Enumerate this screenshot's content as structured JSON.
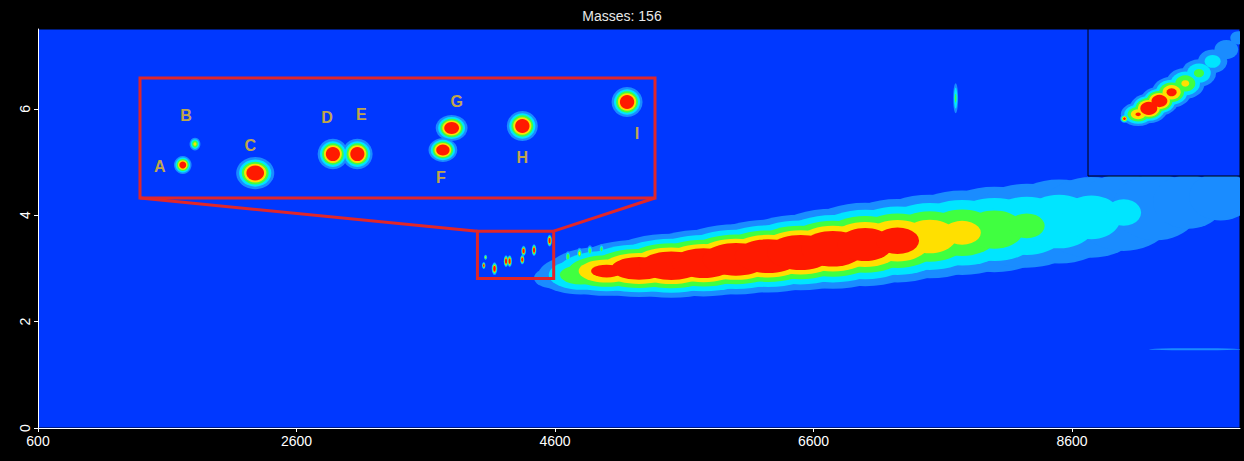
{
  "chart_data": [
    {
      "type": "contour",
      "title": "Masses: 156",
      "xlim": [
        600,
        9900
      ],
      "xticks": [
        600,
        2600,
        4600,
        6600,
        8600
      ],
      "ylim": [
        0,
        7.5
      ],
      "yticks": [
        0,
        2,
        4,
        6
      ],
      "peaks": [
        {
          "x": 4600,
          "y": 2.82,
          "sx": 120,
          "sy": 0.15,
          "intensity": 0.15
        },
        {
          "x": 4800,
          "y": 2.88,
          "sx": 160,
          "sy": 0.18,
          "intensity": 0.5
        },
        {
          "x": 5000,
          "y": 2.95,
          "sx": 200,
          "sy": 0.2,
          "intensity": 0.9
        },
        {
          "x": 5250,
          "y": 3.0,
          "sx": 220,
          "sy": 0.22,
          "intensity": 1.2
        },
        {
          "x": 5500,
          "y": 3.05,
          "sx": 220,
          "sy": 0.24,
          "intensity": 1.4
        },
        {
          "x": 5750,
          "y": 3.1,
          "sx": 220,
          "sy": 0.25,
          "intensity": 1.4
        },
        {
          "x": 6000,
          "y": 3.17,
          "sx": 220,
          "sy": 0.26,
          "intensity": 1.5
        },
        {
          "x": 6250,
          "y": 3.23,
          "sx": 220,
          "sy": 0.27,
          "intensity": 1.5
        },
        {
          "x": 6500,
          "y": 3.3,
          "sx": 220,
          "sy": 0.28,
          "intensity": 1.5
        },
        {
          "x": 6750,
          "y": 3.37,
          "sx": 220,
          "sy": 0.3,
          "intensity": 1.4
        },
        {
          "x": 7000,
          "y": 3.45,
          "sx": 220,
          "sy": 0.32,
          "intensity": 1.2
        },
        {
          "x": 7250,
          "y": 3.52,
          "sx": 220,
          "sy": 0.33,
          "intensity": 1.0
        },
        {
          "x": 7500,
          "y": 3.6,
          "sx": 230,
          "sy": 0.35,
          "intensity": 0.75
        },
        {
          "x": 7750,
          "y": 3.67,
          "sx": 240,
          "sy": 0.37,
          "intensity": 0.6
        },
        {
          "x": 8000,
          "y": 3.73,
          "sx": 250,
          "sy": 0.4,
          "intensity": 0.45
        },
        {
          "x": 8250,
          "y": 3.8,
          "sx": 250,
          "sy": 0.42,
          "intensity": 0.35
        },
        {
          "x": 8500,
          "y": 3.88,
          "sx": 260,
          "sy": 0.45,
          "intensity": 0.28
        },
        {
          "x": 8750,
          "y": 3.96,
          "sx": 260,
          "sy": 0.47,
          "intensity": 0.22
        },
        {
          "x": 9000,
          "y": 4.05,
          "sx": 270,
          "sy": 0.5,
          "intensity": 0.17
        },
        {
          "x": 9250,
          "y": 4.15,
          "sx": 270,
          "sy": 0.5,
          "intensity": 0.13
        },
        {
          "x": 9500,
          "y": 4.25,
          "sx": 270,
          "sy": 0.5,
          "intensity": 0.1
        },
        {
          "x": 9750,
          "y": 4.35,
          "sx": 270,
          "sy": 0.5,
          "intensity": 0.09
        },
        {
          "x": 4700,
          "y": 3.22,
          "sx": 10,
          "sy": 0.05,
          "intensity": 0.5
        },
        {
          "x": 4790,
          "y": 3.28,
          "sx": 10,
          "sy": 0.05,
          "intensity": 0.6
        },
        {
          "x": 4870,
          "y": 3.33,
          "sx": 10,
          "sy": 0.05,
          "intensity": 0.5
        },
        {
          "x": 4960,
          "y": 3.36,
          "sx": 10,
          "sy": 0.05,
          "intensity": 0.4
        },
        {
          "x": 7700,
          "y": 6.2,
          "sx": 10,
          "sy": 0.15,
          "intensity": 0.35
        },
        {
          "x": 9550,
          "y": 1.48,
          "sx": 350,
          "sy": 0.02,
          "intensity": 0.1
        }
      ]
    },
    {
      "type": "contour",
      "tick_labels": false,
      "xlim": [
        4000,
        4590
      ],
      "ylim": [
        2.81,
        3.7
      ],
      "peaks": [
        {
          "label": "A",
          "x": 4049,
          "y": 3.055,
          "sx": 4.1,
          "sy": 0.027,
          "intensity": 1.2
        },
        {
          "label": "B",
          "x": 4063,
          "y": 3.21,
          "sx": 2.9,
          "sy": 0.022,
          "intensity": 0.6
        },
        {
          "label": "C",
          "x": 4132,
          "y": 2.995,
          "sx": 8.6,
          "sy": 0.047,
          "intensity": 1.5
        },
        {
          "label": "D",
          "x": 4221,
          "y": 3.136,
          "sx": 6.9,
          "sy": 0.0445,
          "intensity": 1.5
        },
        {
          "label": "E",
          "x": 4249,
          "y": 3.136,
          "sx": 6.9,
          "sy": 0.0445,
          "intensity": 1.5
        },
        {
          "label": "F",
          "x": 4347,
          "y": 3.166,
          "sx": 6.5,
          "sy": 0.035,
          "intensity": 1.5
        },
        {
          "label": "G",
          "x": 4357,
          "y": 3.329,
          "sx": 7.2,
          "sy": 0.038,
          "intensity": 1.5
        },
        {
          "label": "H",
          "x": 4438,
          "y": 3.344,
          "sx": 7.0,
          "sy": 0.044,
          "intensity": 1.5
        },
        {
          "label": "I",
          "x": 4558,
          "y": 3.522,
          "sx": 7.0,
          "sy": 0.044,
          "intensity": 1.5
        }
      ]
    },
    {
      "type": "contour",
      "tick_labels": false,
      "xlim": [
        0,
        1
      ],
      "ylim": [
        0,
        1
      ],
      "peaks": [
        {
          "x": 0.24,
          "y": 0.39,
          "sx": 0.012,
          "sy": 0.012,
          "intensity": 1.0
        },
        {
          "x": 0.33,
          "y": 0.42,
          "sx": 0.05,
          "sy": 0.035,
          "intensity": 0.8
        },
        {
          "x": 0.4,
          "y": 0.46,
          "sx": 0.05,
          "sy": 0.04,
          "intensity": 1.4
        },
        {
          "x": 0.47,
          "y": 0.51,
          "sx": 0.05,
          "sy": 0.04,
          "intensity": 1.3
        },
        {
          "x": 0.55,
          "y": 0.57,
          "sx": 0.055,
          "sy": 0.045,
          "intensity": 0.9
        },
        {
          "x": 0.64,
          "y": 0.63,
          "sx": 0.06,
          "sy": 0.05,
          "intensity": 0.55
        },
        {
          "x": 0.73,
          "y": 0.7,
          "sx": 0.06,
          "sy": 0.05,
          "intensity": 0.35
        },
        {
          "x": 0.82,
          "y": 0.78,
          "sx": 0.06,
          "sy": 0.05,
          "intensity": 0.22
        },
        {
          "x": 0.91,
          "y": 0.86,
          "sx": 0.06,
          "sy": 0.05,
          "intensity": 0.14
        },
        {
          "x": 0.99,
          "y": 0.94,
          "sx": 0.06,
          "sy": 0.05,
          "intensity": 0.09
        }
      ]
    }
  ]
}
